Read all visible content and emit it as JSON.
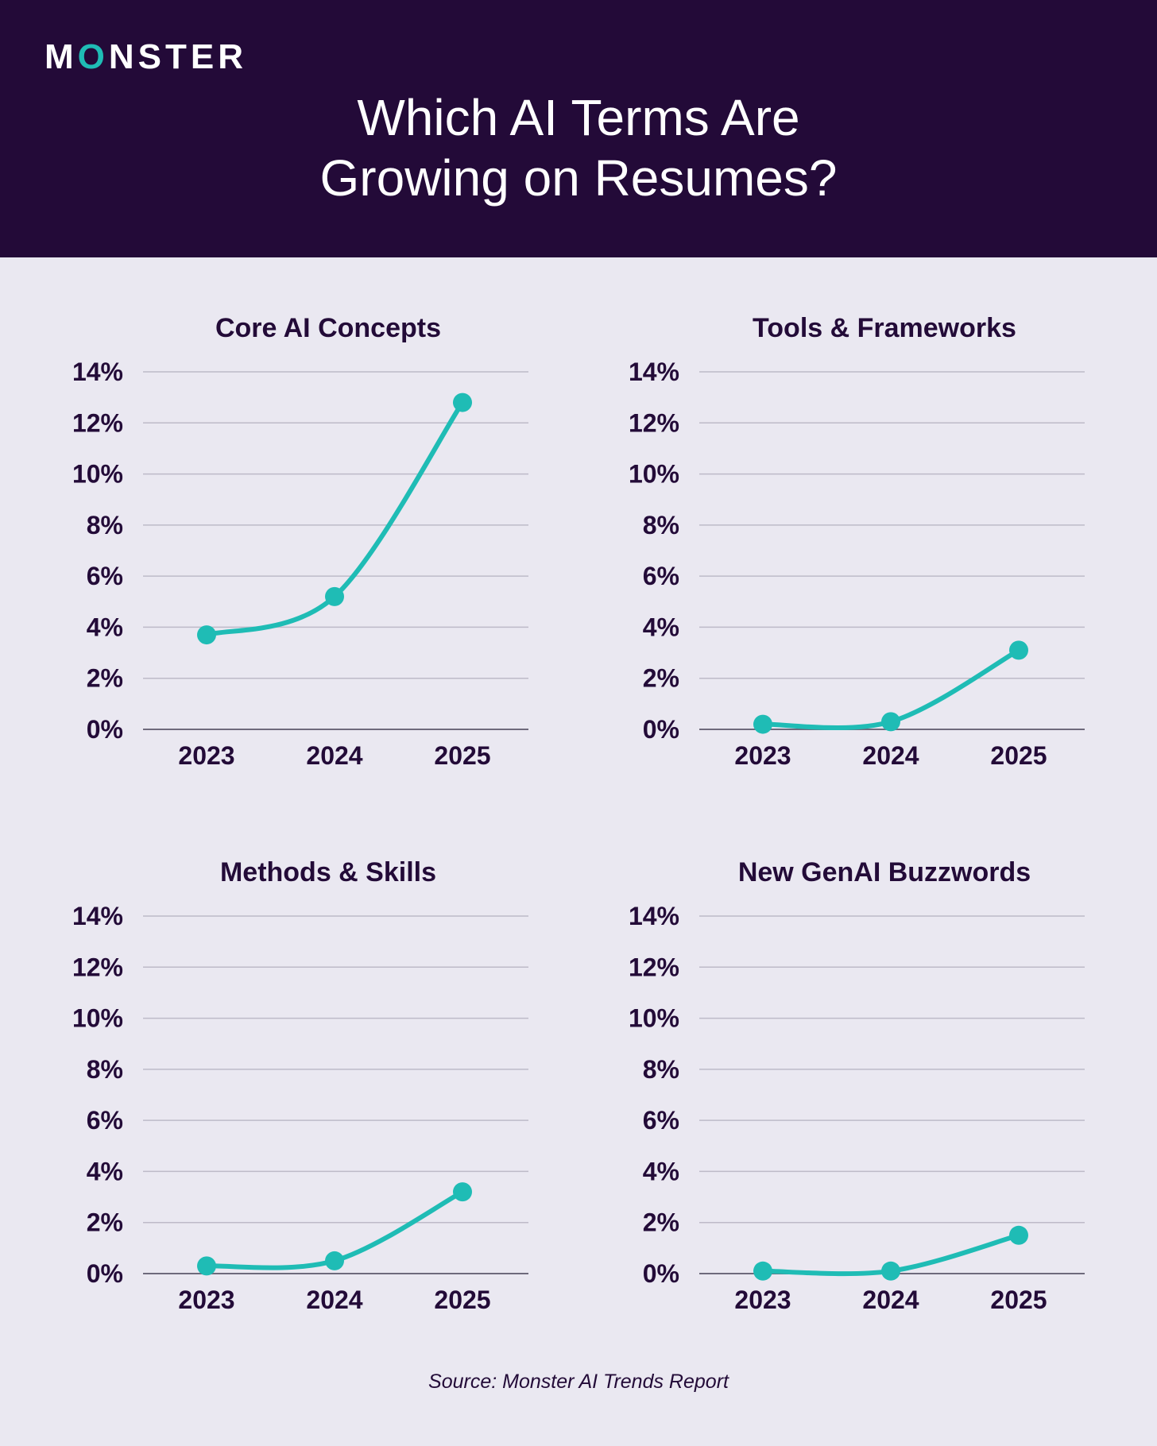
{
  "brand": {
    "logo_prefix": "M",
    "logo_o": "O",
    "logo_suffix": "NSTER"
  },
  "header": {
    "title_line1": "Which AI Terms Are",
    "title_line2": "Growing on Resumes?"
  },
  "colors": {
    "header_bg": "#230a38",
    "page_bg": "#eae8f1",
    "accent": "#1fbcb5",
    "text": "#230b38",
    "grid": "#bdbac8"
  },
  "source": "Source: Monster AI Trends Report",
  "chart_data": [
    {
      "type": "line",
      "title": "Core AI Concepts",
      "categories": [
        "2023",
        "2024",
        "2025"
      ],
      "values": [
        3.7,
        5.2,
        12.8
      ],
      "ylim": [
        0,
        14
      ],
      "yticks": [
        "0%",
        "2%",
        "4%",
        "6%",
        "8%",
        "10%",
        "12%",
        "14%"
      ],
      "grid": true
    },
    {
      "type": "line",
      "title": "Tools & Frameworks",
      "categories": [
        "2023",
        "2024",
        "2025"
      ],
      "values": [
        0.2,
        0.3,
        3.1
      ],
      "ylim": [
        0,
        14
      ],
      "yticks": [
        "0%",
        "2%",
        "4%",
        "6%",
        "8%",
        "10%",
        "12%",
        "14%"
      ],
      "grid": true
    },
    {
      "type": "line",
      "title": "Methods & Skills",
      "categories": [
        "2023",
        "2024",
        "2025"
      ],
      "values": [
        0.3,
        0.5,
        3.2
      ],
      "ylim": [
        0,
        14
      ],
      "yticks": [
        "0%",
        "2%",
        "4%",
        "6%",
        "8%",
        "10%",
        "12%",
        "14%"
      ],
      "grid": true
    },
    {
      "type": "line",
      "title": "New GenAI Buzzwords",
      "categories": [
        "2023",
        "2024",
        "2025"
      ],
      "values": [
        0.1,
        0.1,
        1.5
      ],
      "ylim": [
        0,
        14
      ],
      "yticks": [
        "0%",
        "2%",
        "4%",
        "6%",
        "8%",
        "10%",
        "12%",
        "14%"
      ],
      "grid": true
    }
  ]
}
